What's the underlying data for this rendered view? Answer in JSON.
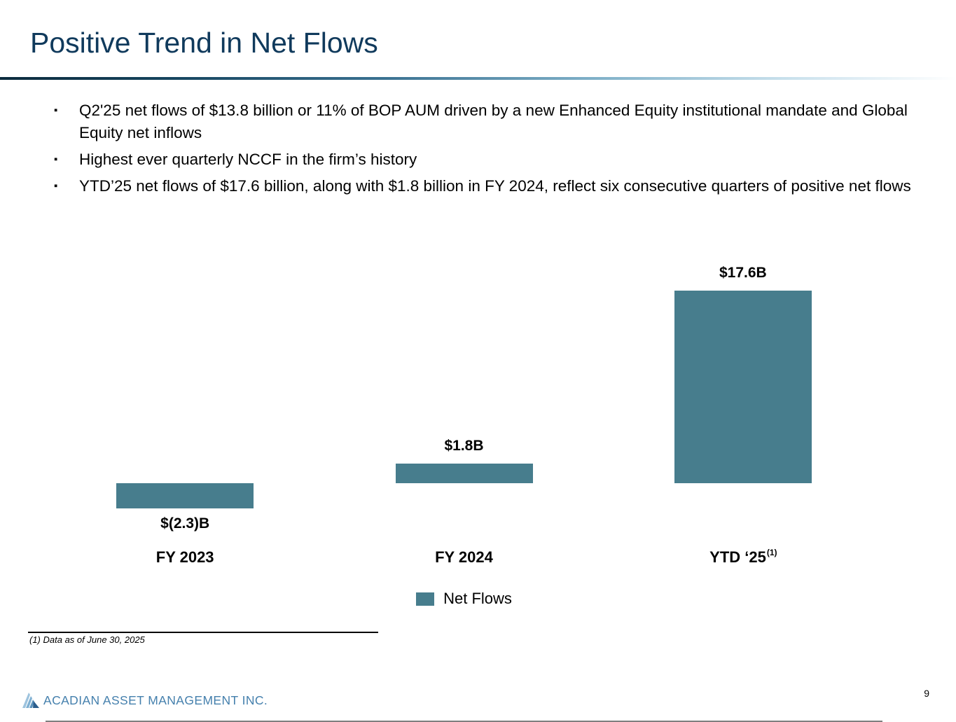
{
  "slide": {
    "title": "Positive Trend in Net Flows",
    "page_number": "9"
  },
  "bullets": {
    "marker": "▪",
    "items": [
      "Q2'25 net flows of $13.8 billion or 11% of BOP AUM driven by a new Enhanced Equity institutional mandate and Global Equity net inflows",
      "Highest ever quarterly NCCF in the firm’s history",
      "YTD’25 net flows of $17.6 billion, along with $1.8 billion in FY 2024, reflect six consecutive quarters of positive net flows"
    ]
  },
  "chart_data": {
    "type": "bar",
    "title": "",
    "categories": [
      "FY 2023",
      "FY 2024",
      "YTD ‘25"
    ],
    "category_superscripts": [
      "",
      "",
      "(1)"
    ],
    "values": [
      -2.3,
      1.8,
      17.6
    ],
    "value_labels": [
      "$(2.3)B",
      "$1.8B",
      "$17.6B"
    ],
    "unit": "$B",
    "legend": [
      {
        "name": "Net Flows",
        "color": "#477d8d"
      }
    ],
    "legend_position": "bottom",
    "bar_color": "#477d8d",
    "axis_color": "#7f7f7f",
    "ylim": [
      -4,
      20
    ],
    "grid": false
  },
  "footnote": {
    "text": "(1) Data as of June 30, 2025"
  },
  "footer": {
    "company": "ACADIAN ASSET MANAGEMENT INC."
  },
  "colors": {
    "title": "#103a5c",
    "bar": "#477d8d",
    "footer_text": "#4580ad"
  }
}
